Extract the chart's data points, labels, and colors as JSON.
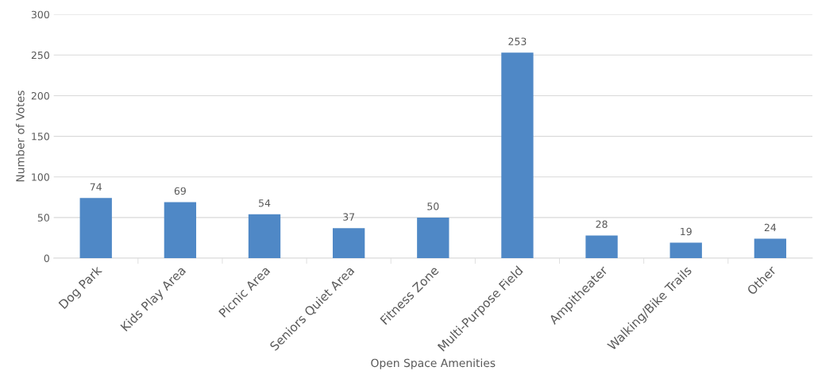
{
  "chart_data": {
    "type": "bar",
    "xlabel": "Open Space Amenities",
    "ylabel": "Number of Votes",
    "categories": [
      "Dog Park",
      "Kids Play Area",
      "Picnic Area",
      "Seniors Quiet Area",
      "Fitness Zone",
      "Multi-Purpose Field",
      "Ampitheater",
      "Walking/Bike Trails",
      "Other"
    ],
    "values": [
      74,
      69,
      54,
      37,
      50,
      253,
      28,
      19,
      24
    ],
    "color": "#4f88c6",
    "ylim": [
      0,
      300
    ],
    "yticks": [
      0,
      50,
      100,
      150,
      200,
      250,
      300
    ],
    "grid": "y",
    "data_labels": true
  }
}
